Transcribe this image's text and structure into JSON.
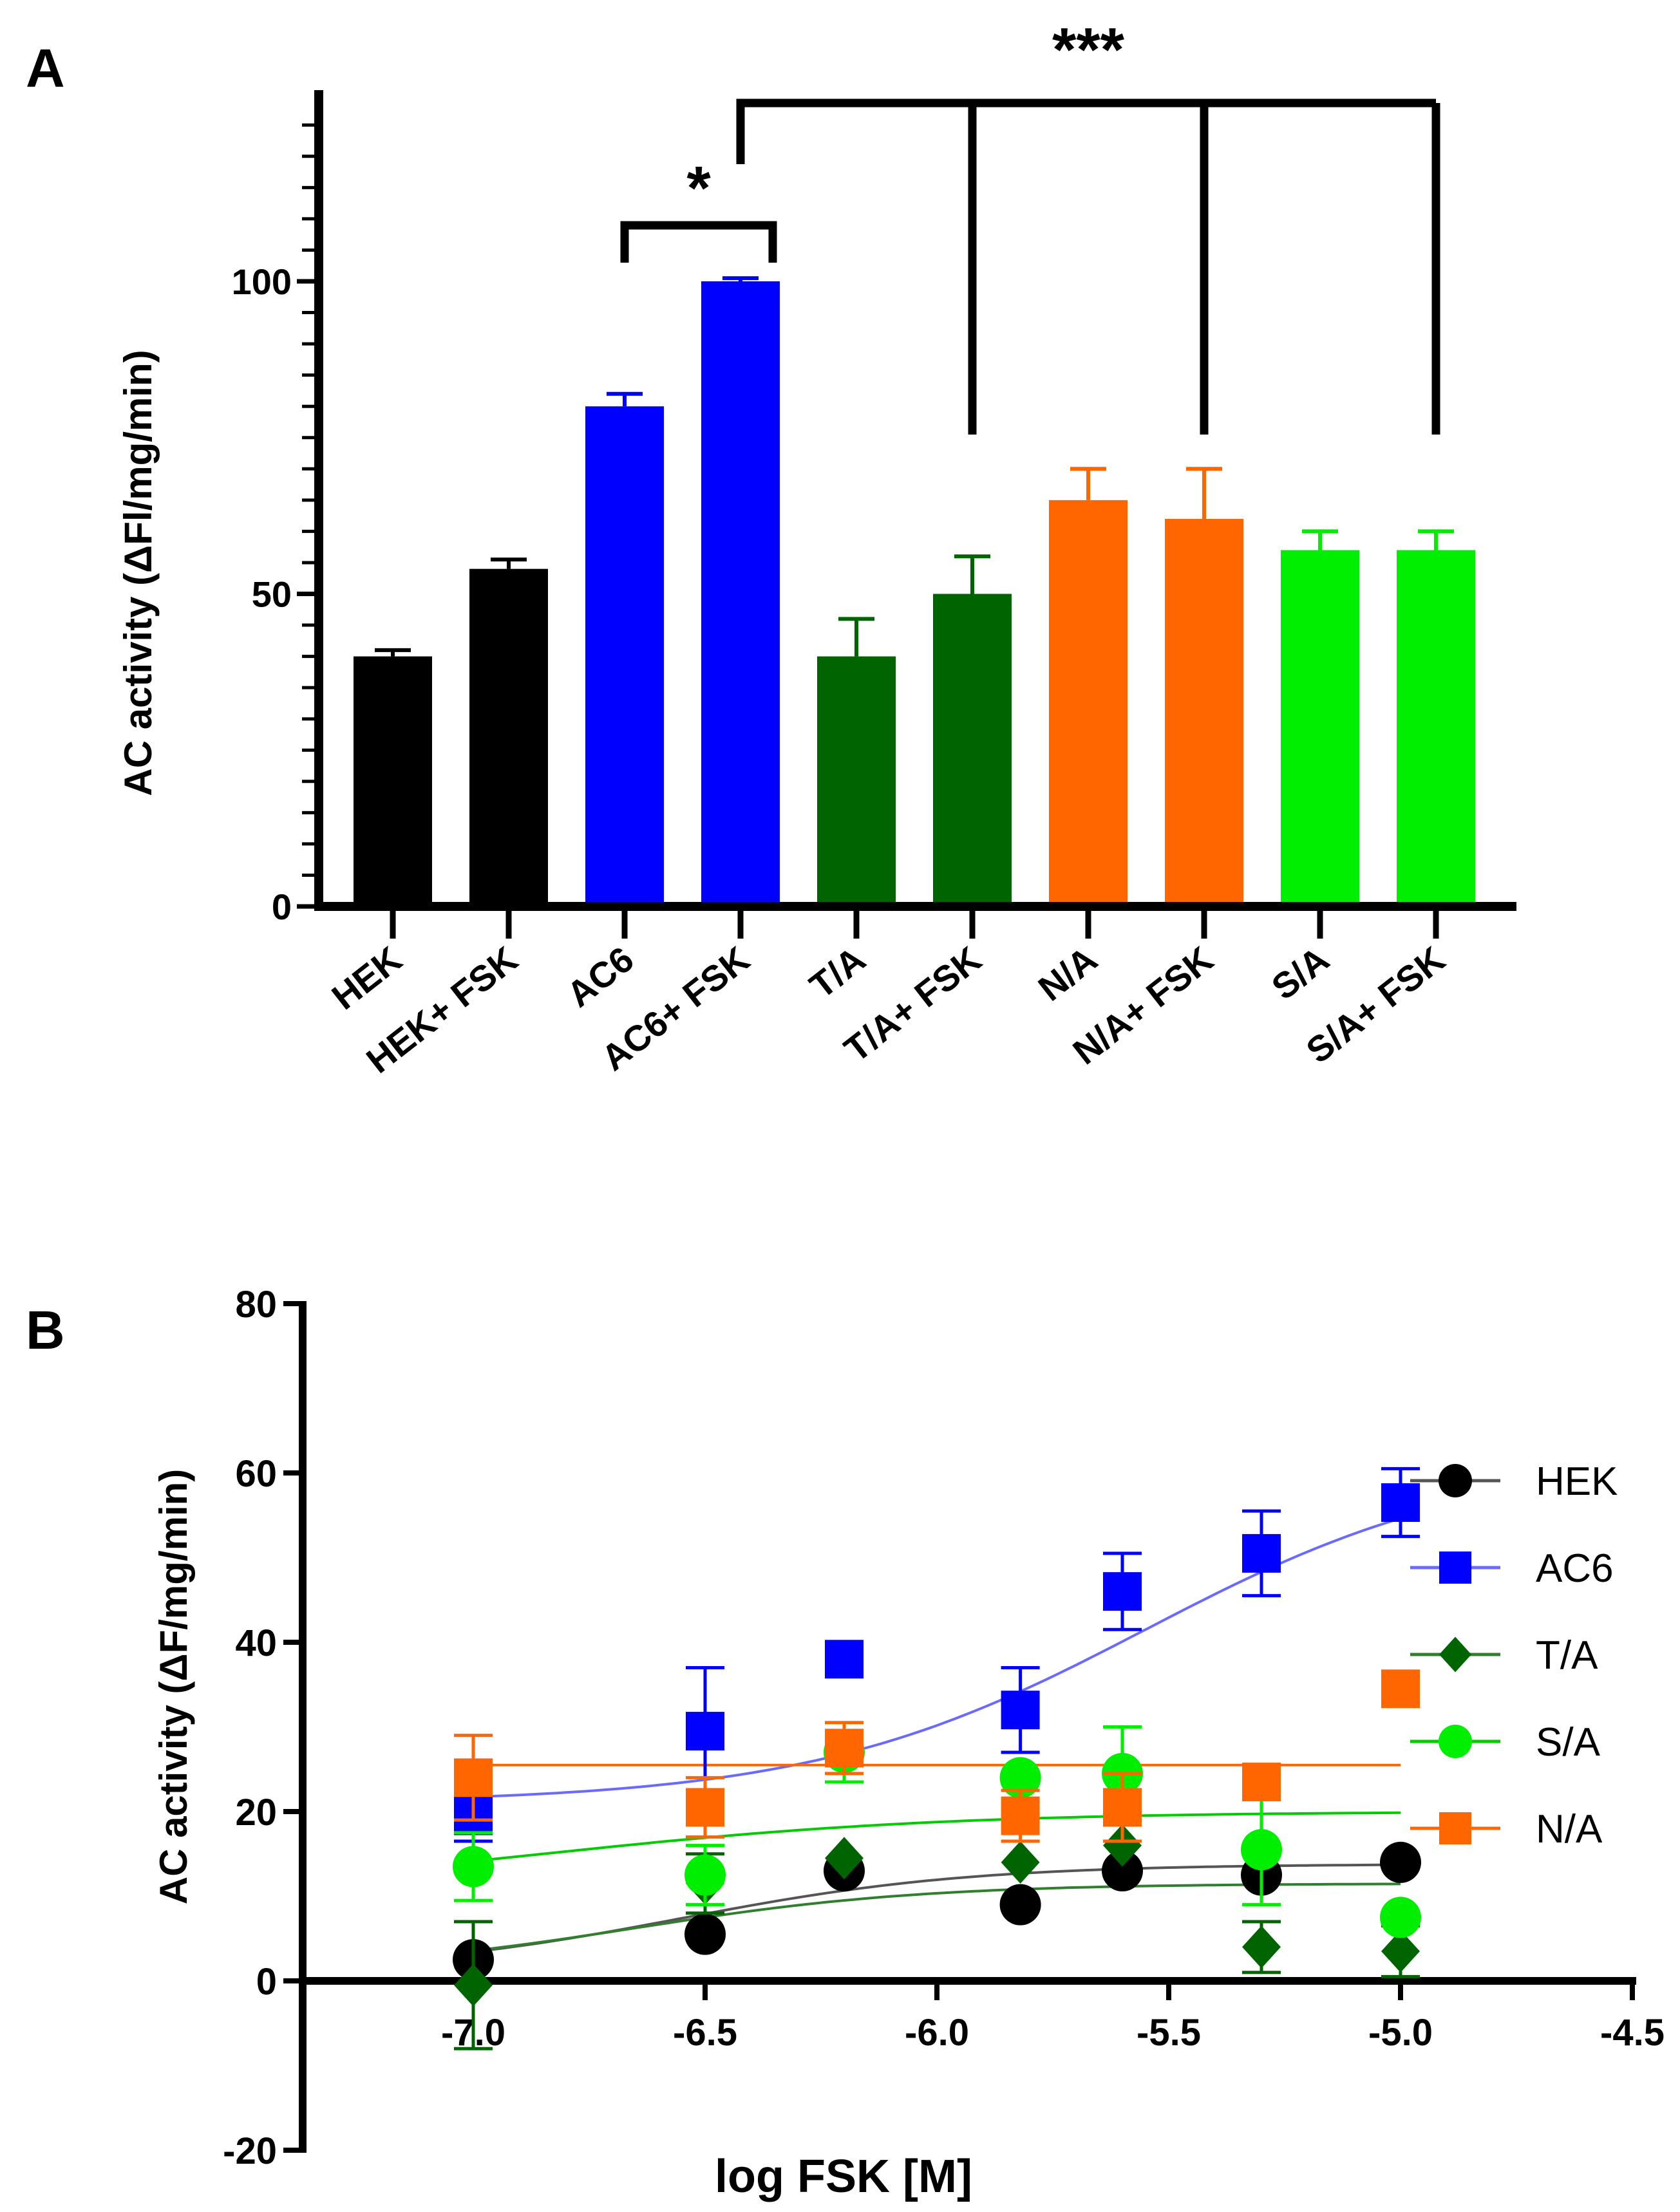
{
  "chart_data": [
    {
      "panel_label": "A",
      "type": "bar",
      "ylabel": "AC activity (ΔFl/mg/min)",
      "ylim": [
        0,
        130
      ],
      "yticks": [
        0,
        50,
        100
      ],
      "categories": [
        "HEK",
        "HEK+ FSK",
        "AC6",
        "AC6+ FSK",
        "T/A",
        "T/A+ FSK",
        "N/A",
        "N/A+ FSK",
        "S/A",
        "S/A+ FSK"
      ],
      "values": [
        40,
        54,
        80,
        100,
        40,
        50,
        65,
        62,
        57,
        57
      ],
      "errors": [
        1,
        1.5,
        2,
        0.5,
        6,
        6,
        5,
        8,
        3,
        3
      ],
      "colors": [
        "#000000",
        "#000000",
        "#0000ff",
        "#0000ff",
        "#006400",
        "#006400",
        "#ff6600",
        "#ff6600",
        "#00ee00",
        "#00ee00"
      ],
      "significance": [
        {
          "label": "*",
          "from": "AC6",
          "to": "AC6+ FSK"
        },
        {
          "label": "***",
          "from": "AC6+ FSK",
          "to": [
            "T/A+ FSK",
            "N/A+ FSK",
            "S/A+ FSK"
          ]
        }
      ]
    },
    {
      "panel_label": "B",
      "type": "scatter",
      "xlabel": "log FSK [M]",
      "ylabel": "AC activity (ΔF/mg/min)",
      "xlim": [
        -7.3,
        -4.5
      ],
      "ylim": [
        -20,
        80
      ],
      "xticks": [
        -7.0,
        -6.5,
        -6.0,
        -5.5,
        -5.0,
        -4.5
      ],
      "xtick_labels": [
        "-7.0",
        "-6.5",
        "-6.0",
        "-5.5",
        "-5.0",
        "-4.5"
      ],
      "yticks": [
        -20,
        0,
        20,
        40,
        60,
        80
      ],
      "x": [
        -7.0,
        -6.5,
        -6.2,
        -5.82,
        -5.6,
        -5.3,
        -5.0
      ],
      "legend_position": "right",
      "series": [
        {
          "name": "HEK",
          "marker": "circle",
          "color": "#000000",
          "line_color": "#555555",
          "y": [
            2.5,
            5.5,
            13,
            9,
            13,
            12.5,
            14
          ],
          "err": [
            null,
            null,
            null,
            null,
            null,
            null,
            null
          ],
          "fit": {
            "bottom": 1,
            "top": 13.8,
            "logec50": -6.55,
            "hill": 1.4
          }
        },
        {
          "name": "AC6",
          "marker": "square",
          "color": "#0000ff",
          "line_color": "#6a6aff",
          "y": [
            19.5,
            29.5,
            38,
            32,
            46,
            50.5,
            56.5
          ],
          "err": [
            3,
            7.5,
            null,
            5,
            4.5,
            5,
            4
          ],
          "fit": {
            "bottom": 21,
            "top": 62,
            "logec50": -5.55,
            "hill": 1.2
          }
        },
        {
          "name": "T/A",
          "marker": "diamond",
          "color": "#006400",
          "line_color": "#2f7f2f",
          "y": [
            -0.5,
            11.5,
            14.5,
            14,
            16,
            4,
            3.5
          ],
          "err": [
            7.5,
            3.5,
            null,
            null,
            null,
            3,
            3
          ],
          "fit": {
            "bottom": 1,
            "top": 11.5,
            "logec50": -6.65,
            "hill": 1.4
          }
        },
        {
          "name": "S/A",
          "marker": "circle",
          "color": "#00ee00",
          "line_color": "#00cc00",
          "y": [
            13.5,
            12.5,
            27,
            24,
            24.5,
            15.5,
            7.5
          ],
          "err": [
            4,
            3.5,
            3.5,
            null,
            5.5,
            6.5,
            null
          ],
          "fit": {
            "bottom": 10,
            "top": 20,
            "logec50": -6.85,
            "hill": 1.0
          }
        },
        {
          "name": "N/A",
          "marker": "square",
          "color": "#ff6600",
          "line_color": "#ff6600",
          "y": [
            24,
            20.5,
            27.5,
            19.5,
            20.5,
            23.5,
            34.5
          ],
          "err": [
            5,
            3.5,
            3,
            3,
            4,
            null,
            null
          ],
          "fit": {
            "bottom": 25.5,
            "top": 25.5,
            "logec50": -6.0,
            "hill": 1.0
          }
        }
      ]
    }
  ]
}
